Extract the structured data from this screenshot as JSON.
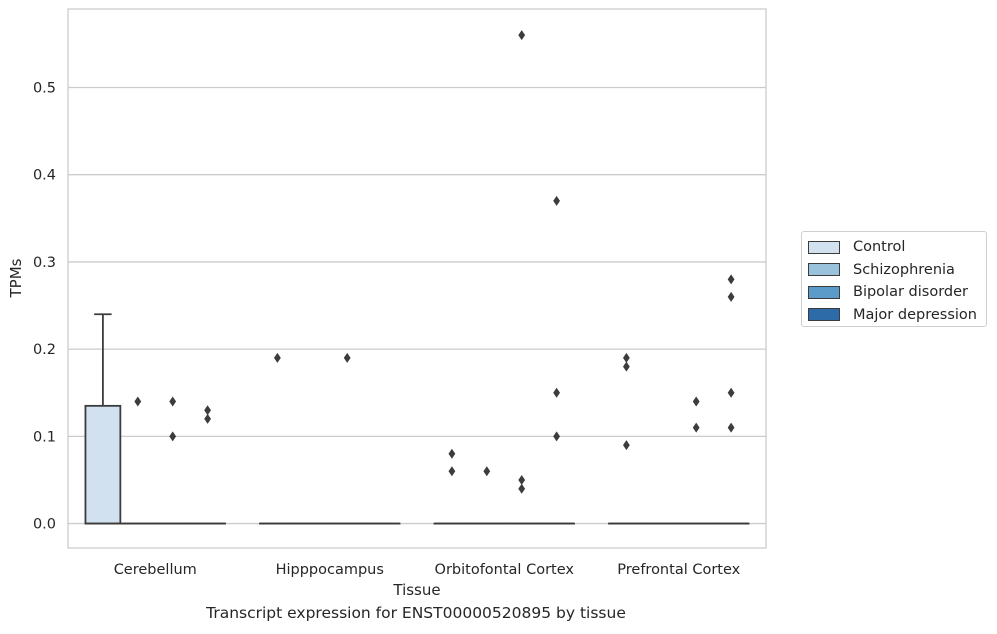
{
  "chart_data": {
    "type": "box",
    "title": "Transcript expression for ENST00000520895 by tissue",
    "xlabel": "Tissue",
    "ylabel": "TPMs",
    "ylim": [
      -0.028,
      0.59
    ],
    "yticks": [
      0.0,
      0.1,
      0.2,
      0.3,
      0.4,
      0.5
    ],
    "ytick_labels": [
      "0.0",
      "0.1",
      "0.2",
      "0.3",
      "0.4",
      "0.5"
    ],
    "grid": "horizontal",
    "legend_position": "right",
    "categories": [
      "Cerebellum",
      "Hipppocampus",
      "Orbitofontal Cortex",
      "Prefrontal Cortex"
    ],
    "series": [
      {
        "name": "Control",
        "color": "#d2e1f0",
        "boxes": [
          {
            "q1": 0.0,
            "median": 0.0,
            "q3": 0.135,
            "whisker_low": 0.0,
            "whisker_high": 0.24,
            "outliers": []
          },
          {
            "q1": 0.0,
            "median": 0.0,
            "q3": 0.0,
            "whisker_low": 0.0,
            "whisker_high": 0.0,
            "outliers": [
              0.19
            ]
          },
          {
            "q1": 0.0,
            "median": 0.0,
            "q3": 0.0,
            "whisker_low": 0.0,
            "whisker_high": 0.0,
            "outliers": [
              0.08,
              0.06
            ]
          },
          {
            "q1": 0.0,
            "median": 0.0,
            "q3": 0.0,
            "whisker_low": 0.0,
            "whisker_high": 0.0,
            "outliers": [
              0.19,
              0.18,
              0.09
            ]
          }
        ]
      },
      {
        "name": "Schizophrenia",
        "color": "#9ac2dc",
        "boxes": [
          {
            "q1": 0.0,
            "median": 0.0,
            "q3": 0.0,
            "whisker_low": 0.0,
            "whisker_high": 0.0,
            "outliers": [
              0.14
            ]
          },
          {
            "q1": 0.0,
            "median": 0.0,
            "q3": 0.0,
            "whisker_low": 0.0,
            "whisker_high": 0.0,
            "outliers": []
          },
          {
            "q1": 0.0,
            "median": 0.0,
            "q3": 0.0,
            "whisker_low": 0.0,
            "whisker_high": 0.0,
            "outliers": [
              0.06
            ]
          },
          {
            "q1": 0.0,
            "median": 0.0,
            "q3": 0.0,
            "whisker_low": 0.0,
            "whisker_high": 0.0,
            "outliers": []
          }
        ]
      },
      {
        "name": "Bipolar disorder",
        "color": "#5b9bc9",
        "boxes": [
          {
            "q1": 0.0,
            "median": 0.0,
            "q3": 0.0,
            "whisker_low": 0.0,
            "whisker_high": 0.0,
            "outliers": [
              0.14,
              0.1
            ]
          },
          {
            "q1": 0.0,
            "median": 0.0,
            "q3": 0.0,
            "whisker_low": 0.0,
            "whisker_high": 0.0,
            "outliers": [
              0.19
            ]
          },
          {
            "q1": 0.0,
            "median": 0.0,
            "q3": 0.0,
            "whisker_low": 0.0,
            "whisker_high": 0.0,
            "outliers": [
              0.56,
              0.05,
              0.04
            ]
          },
          {
            "q1": 0.0,
            "median": 0.0,
            "q3": 0.0,
            "whisker_low": 0.0,
            "whisker_high": 0.0,
            "outliers": [
              0.14,
              0.11
            ]
          }
        ]
      },
      {
        "name": "Major depression",
        "color": "#2c6aa8",
        "boxes": [
          {
            "q1": 0.0,
            "median": 0.0,
            "q3": 0.0,
            "whisker_low": 0.0,
            "whisker_high": 0.0,
            "outliers": [
              0.13,
              0.12
            ]
          },
          {
            "q1": 0.0,
            "median": 0.0,
            "q3": 0.0,
            "whisker_low": 0.0,
            "whisker_high": 0.0,
            "outliers": []
          },
          {
            "q1": 0.0,
            "median": 0.0,
            "q3": 0.0,
            "whisker_low": 0.0,
            "whisker_high": 0.0,
            "outliers": [
              0.37,
              0.15,
              0.1
            ]
          },
          {
            "q1": 0.0,
            "median": 0.0,
            "q3": 0.0,
            "whisker_low": 0.0,
            "whisker_high": 0.0,
            "outliers": [
              0.28,
              0.26,
              0.15,
              0.11
            ]
          }
        ]
      }
    ]
  }
}
